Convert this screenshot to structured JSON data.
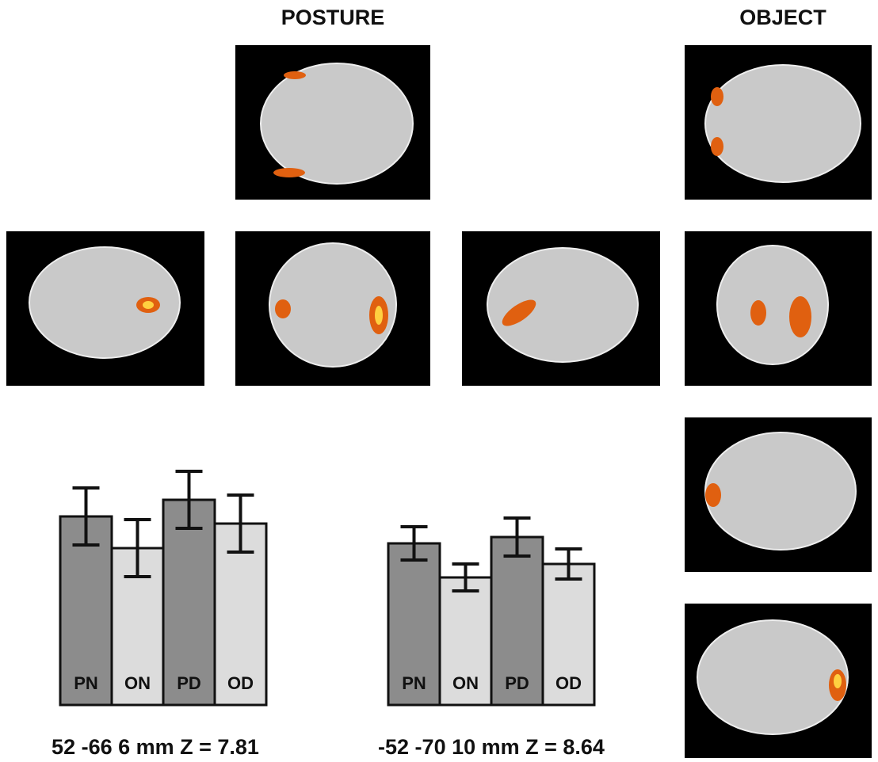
{
  "headings": [
    "POSTURE",
    "OBJECT"
  ],
  "chart_data": [
    {
      "type": "bar",
      "categories": [
        "PN",
        "ON",
        "PD",
        "OD"
      ],
      "values": [
        238,
        198,
        259,
        229
      ],
      "errors": [
        36,
        36,
        36,
        36
      ],
      "colors": [
        "#8c8c8c",
        "#dcdcdc",
        "#8c8c8c",
        "#dcdcdc"
      ],
      "ylim": [
        0,
        300
      ],
      "caption": "52 -66 6 mm Z = 7.81"
    },
    {
      "type": "bar",
      "categories": [
        "PN",
        "ON",
        "PD",
        "OD"
      ],
      "values": [
        204,
        161,
        212,
        178
      ],
      "errors": [
        21,
        17,
        24,
        19
      ],
      "colors": [
        "#8c8c8c",
        "#dcdcdc",
        "#8c8c8c",
        "#dcdcdc"
      ],
      "ylim": [
        0,
        300
      ],
      "caption": "-52 -70 10 mm Z = 8.64"
    }
  ]
}
